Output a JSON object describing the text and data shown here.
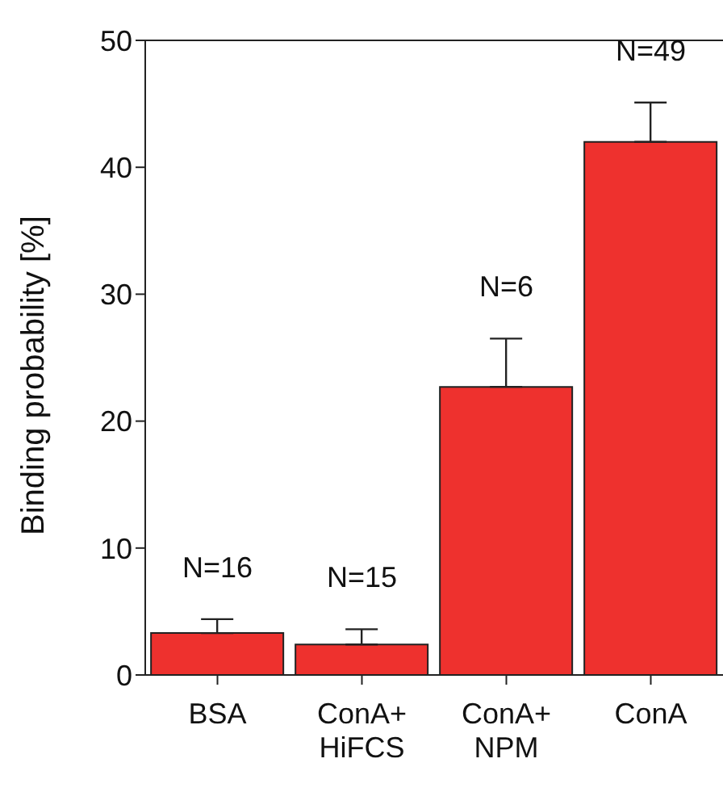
{
  "chart_data": {
    "type": "bar",
    "ylabel": "Binding probability [%]",
    "categories": [
      "BSA",
      "ConA+\nHiFCS",
      "ConA+\nNPM",
      "ConA"
    ],
    "values": [
      3.3,
      2.4,
      22.7,
      42.0
    ],
    "errors": [
      [
        3.3,
        4.4
      ],
      [
        2.4,
        3.6
      ],
      [
        22.7,
        26.5
      ],
      [
        42.0,
        45.1
      ]
    ],
    "color": "#ee312e",
    "ylim": [
      0,
      50
    ],
    "yticks": [
      0,
      10,
      20,
      30,
      40,
      50
    ],
    "grid": false,
    "legend": false,
    "annotations": [
      {
        "text": "N=16",
        "x": "BSA",
        "y": 4.4
      },
      {
        "text": "N=15",
        "x": "ConA+\nHiFCS",
        "y": 3.6
      },
      {
        "text": "N=6",
        "x": "ConA+\nNPM",
        "y": 26.5
      },
      {
        "text": "N=49",
        "x": "ConA",
        "y": 45.1
      }
    ]
  }
}
